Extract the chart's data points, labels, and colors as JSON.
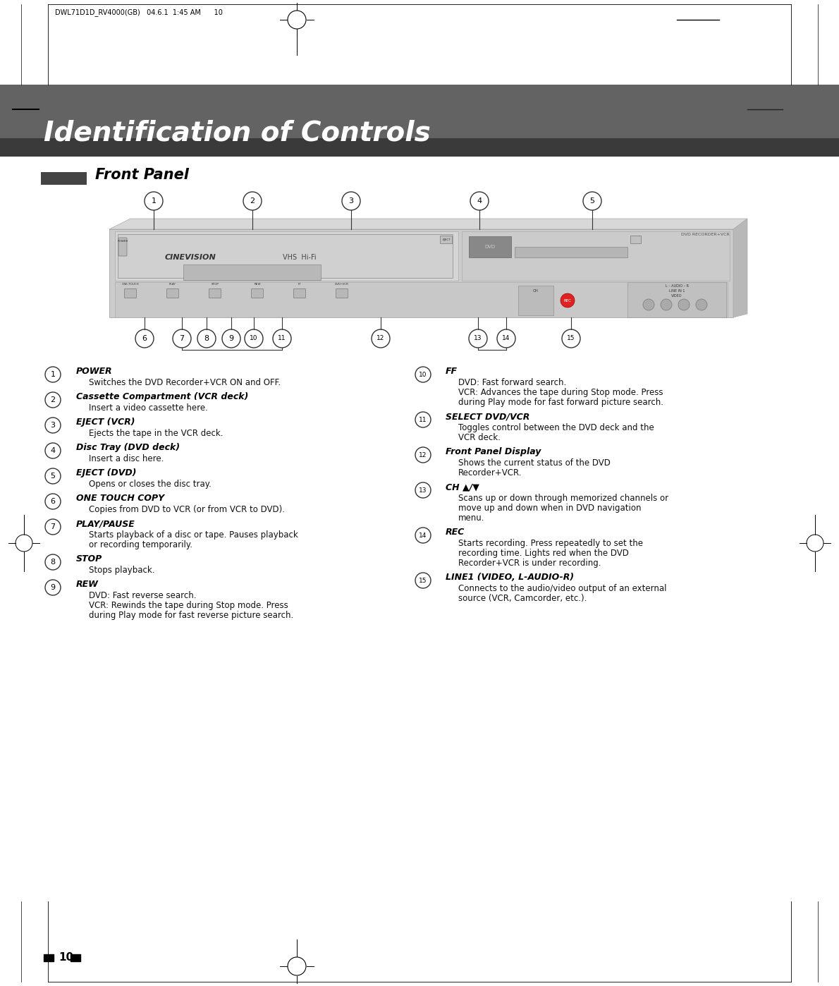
{
  "page_bg": "#ffffff",
  "header_bg_light": "#666666",
  "header_bg_dark": "#3a3a3a",
  "header_text": "Identification of Controls",
  "header_text_color": "#ffffff",
  "section_title": "Front Panel",
  "page_number": "10",
  "top_bar_text": "DWL71D1D_RV4000(GB)   04.6.1  1:45 AM      10",
  "left_items": [
    {
      "num": "1",
      "title": "POWER",
      "text": "Switches the DVD Recorder+VCR ON and OFF.",
      "lines": 1
    },
    {
      "num": "2",
      "title": "Cassette Compartment (VCR deck)",
      "text": "Insert a video cassette here.",
      "lines": 1
    },
    {
      "num": "3",
      "title": "EJECT (VCR)",
      "text": "Ejects the tape in the VCR deck.",
      "lines": 1
    },
    {
      "num": "4",
      "title": "Disc Tray (DVD deck)",
      "text": "Insert a disc here.",
      "lines": 1
    },
    {
      "num": "5",
      "title": "EJECT (DVD)",
      "text": "Opens or closes the disc tray.",
      "lines": 1
    },
    {
      "num": "6",
      "title": "ONE TOUCH COPY",
      "text": "Copies from DVD to VCR (or from VCR to DVD).",
      "lines": 1
    },
    {
      "num": "7",
      "title": "PLAY/PAUSE",
      "text": "Starts playback of a disc or tape. Pauses playback\nor recording temporarily.",
      "lines": 2
    },
    {
      "num": "8",
      "title": "STOP",
      "text": "Stops playback.",
      "lines": 1
    },
    {
      "num": "9",
      "title": "REW",
      "text": "DVD: Fast reverse search.\nVCR: Rewinds the tape during Stop mode. Press\nduring Play mode for fast reverse picture search.",
      "lines": 3
    }
  ],
  "right_items": [
    {
      "num": "10",
      "title": "FF",
      "text": "DVD: Fast forward search.\nVCR: Advances the tape during Stop mode. Press\nduring Play mode for fast forward picture search.",
      "lines": 3
    },
    {
      "num": "11",
      "title": "SELECT DVD/VCR",
      "text": "Toggles control between the DVD deck and the\nVCR deck.",
      "lines": 2
    },
    {
      "num": "12",
      "title": "Front Panel Display",
      "text": "Shows the current status of the DVD\nRecorder+VCR.",
      "lines": 2
    },
    {
      "num": "13",
      "title": "CH ▲/▼",
      "text": "Scans up or down through memorized channels or\nmove up and down when in DVD navigation\nmenu.",
      "lines": 3
    },
    {
      "num": "14",
      "title": "REC",
      "text": "Starts recording. Press repeatedly to set the\nrecording time. Lights red when the DVD\nRecorder+VCR is under recording.",
      "lines": 3
    },
    {
      "num": "15",
      "title": "LINE1 (VIDEO, L-AUDIO-R)",
      "text": "Connects to the audio/video output of an external\nsource (VCR, Camcorder, etc.).",
      "lines": 2
    }
  ]
}
